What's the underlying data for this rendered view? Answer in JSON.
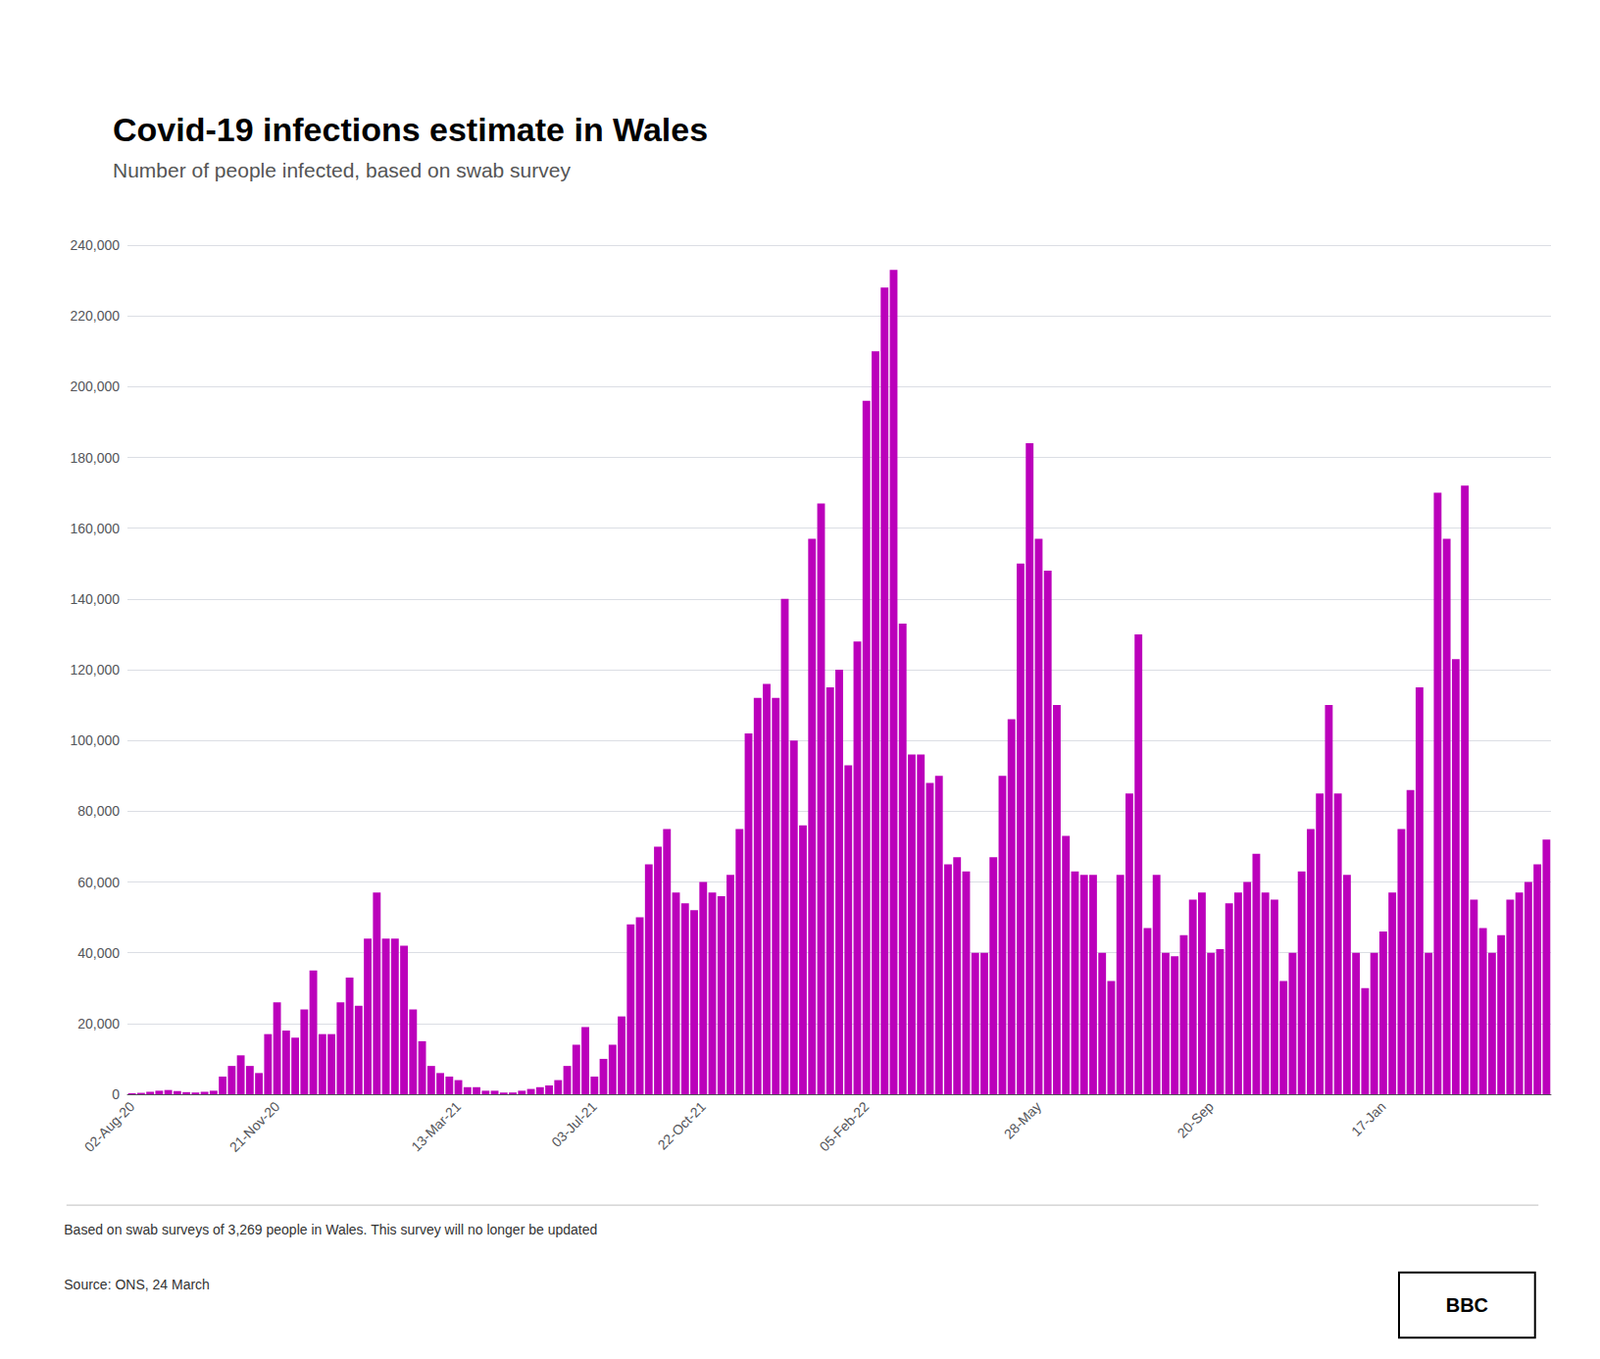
{
  "chart_data": {
    "type": "bar",
    "title": "Covid-19 infections estimate in Wales",
    "subtitle": "Number of people infected, based on swab survey",
    "footnote": "Based on swab surveys of 3,269 people in Wales. This survey will no longer be updated",
    "source": "Source: ONS, 24 March",
    "annotations": [
      "BBC"
    ],
    "color": "#bb00bb",
    "grid": true,
    "ylim": [
      0,
      240000
    ],
    "yticks": [
      0,
      {
        "value": 20000,
        "label": "20,000"
      },
      {
        "value": 40000,
        "label": "40,000"
      },
      {
        "value": 60000,
        "label": "60,000"
      },
      {
        "value": 80000,
        "label": "80,000"
      },
      {
        "value": 100000,
        "label": "100,000"
      },
      {
        "value": 120000,
        "label": "120,000"
      },
      {
        "value": 140000,
        "label": "140,000"
      },
      {
        "value": 160000,
        "label": "160,000"
      },
      {
        "value": 180000,
        "label": "180,000"
      },
      {
        "value": 200000,
        "label": "200,000"
      },
      {
        "value": 220000,
        "label": "220,000"
      },
      {
        "value": 240000,
        "label": "240,000"
      }
    ],
    "categories": [
      "02-Aug-20",
      null,
      null,
      null,
      null,
      null,
      null,
      null,
      null,
      null,
      null,
      null,
      null,
      null,
      null,
      null,
      "21-Nov-20",
      null,
      null,
      null,
      null,
      null,
      null,
      null,
      null,
      null,
      null,
      null,
      null,
      null,
      null,
      null,
      null,
      null,
      null,
      null,
      "13-Mar-21",
      null,
      null,
      null,
      null,
      null,
      null,
      null,
      null,
      null,
      null,
      null,
      null,
      null,
      null,
      "03-Jul-21",
      null,
      null,
      null,
      null,
      null,
      null,
      null,
      null,
      null,
      null,
      null,
      "22-Oct-21",
      null,
      null,
      null,
      null,
      null,
      null,
      null,
      null,
      null,
      null,
      null,
      null,
      null,
      null,
      null,
      null,
      null,
      "05-Feb-22",
      null,
      null,
      null,
      null,
      null,
      null,
      null,
      null,
      null,
      null,
      null,
      null,
      null,
      null,
      null,
      null,
      null,
      null,
      "28-May",
      null,
      null,
      null,
      null,
      null,
      null,
      null,
      null,
      null,
      null,
      null,
      null,
      null,
      null,
      null,
      null,
      null,
      null,
      "20-Sep",
      null,
      null,
      null,
      null,
      null,
      null,
      null,
      null,
      null,
      null,
      null,
      null,
      null,
      null,
      null,
      null,
      null,
      null,
      "17-Jan",
      null,
      null,
      null,
      null,
      null,
      null,
      null,
      null,
      null,
      null,
      null,
      null,
      null,
      null,
      null,
      null,
      null,
      null
    ],
    "values": [
      300,
      400,
      700,
      1000,
      1200,
      900,
      600,
      500,
      700,
      1000,
      5000,
      8000,
      11000,
      8000,
      6000,
      17000,
      26000,
      18000,
      16000,
      24000,
      35000,
      17000,
      17000,
      26000,
      33000,
      25000,
      44000,
      57000,
      44000,
      44000,
      42000,
      24000,
      15000,
      8000,
      6000,
      5000,
      4000,
      2000,
      2000,
      1000,
      1000,
      500,
      500,
      1000,
      1500,
      2000,
      2500,
      4000,
      8000,
      14000,
      19000,
      5000,
      10000,
      14000,
      22000,
      48000,
      50000,
      65000,
      70000,
      75000,
      57000,
      54000,
      52000,
      60000,
      57000,
      56000,
      62000,
      75000,
      102000,
      112000,
      116000,
      112000,
      140000,
      100000,
      76000,
      157000,
      167000,
      115000,
      120000,
      93000,
      128000,
      196000,
      210000,
      228000,
      233000,
      133000,
      96000,
      96000,
      88000,
      90000,
      65000,
      67000,
      63000,
      40000,
      40000,
      67000,
      90000,
      106000,
      150000,
      184000,
      157000,
      148000,
      110000,
      73000,
      63000,
      62000,
      62000,
      40000,
      32000,
      62000,
      85000,
      130000,
      47000,
      62000,
      40000,
      39000,
      45000,
      55000,
      57000,
      40000,
      41000,
      54000,
      57000,
      60000,
      68000,
      57000,
      55000,
      32000,
      40000,
      63000,
      75000,
      85000,
      110000,
      85000,
      62000,
      40000,
      30000,
      40000,
      46000,
      57000,
      75000,
      86000,
      115000,
      40000,
      170000,
      157000,
      123000,
      172000,
      55000,
      47000,
      40000,
      45000,
      55000,
      57000,
      60000,
      65000,
      72000
    ]
  }
}
